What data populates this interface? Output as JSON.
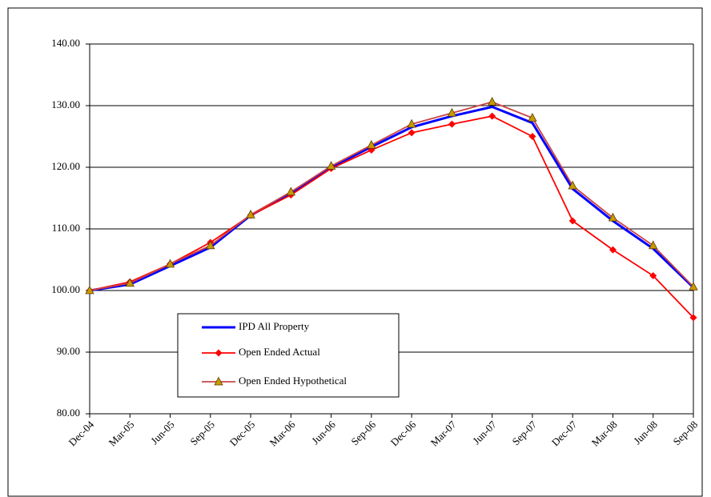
{
  "chart_data": {
    "type": "line",
    "categories": [
      "Dec-04",
      "Mar-05",
      "Jun-05",
      "Sep-05",
      "Dec-05",
      "Mar-06",
      "Jun-06",
      "Sep-06",
      "Dec-06",
      "Mar-07",
      "Jun-07",
      "Sep-07",
      "Dec-07",
      "Mar-08",
      "Jun-08",
      "Sep-08"
    ],
    "series": [
      {
        "name": "IPD All Property",
        "color": "#0000ff",
        "marker": "none",
        "values": [
          100,
          101.0,
          104.0,
          107.0,
          112.2,
          115.8,
          120.0,
          123.3,
          126.5,
          128.3,
          129.8,
          127.2,
          116.5,
          111.3,
          106.8,
          100.5
        ]
      },
      {
        "name": "Open Ended Actual",
        "color": "#ff0000",
        "marker": "diamond",
        "marker_color": "#ff0000",
        "values": [
          100,
          101.4,
          104.3,
          107.8,
          112.2,
          115.5,
          119.8,
          122.8,
          125.6,
          127.0,
          128.3,
          125.0,
          111.3,
          106.6,
          102.4,
          95.6
        ]
      },
      {
        "name": "Open Ended Hypothetical",
        "color": "#cc4444",
        "marker": "triangle",
        "marker_color": "#c89a00",
        "values": [
          100,
          101.2,
          104.3,
          107.3,
          112.3,
          116.0,
          120.2,
          123.6,
          127.0,
          128.8,
          130.6,
          128.0,
          117.0,
          111.8,
          107.3,
          100.6
        ]
      }
    ],
    "ylim": [
      80,
      140
    ],
    "yticks": [
      {
        "value": 80,
        "label": "80.00"
      },
      {
        "value": 90,
        "label": "90.00"
      },
      {
        "value": 100,
        "label": "100.00"
      },
      {
        "value": 110,
        "label": "110.00"
      },
      {
        "value": 120,
        "label": "120.00"
      },
      {
        "value": 130,
        "label": "130.00"
      },
      {
        "value": 140,
        "label": "140.00"
      }
    ],
    "grid": true
  }
}
